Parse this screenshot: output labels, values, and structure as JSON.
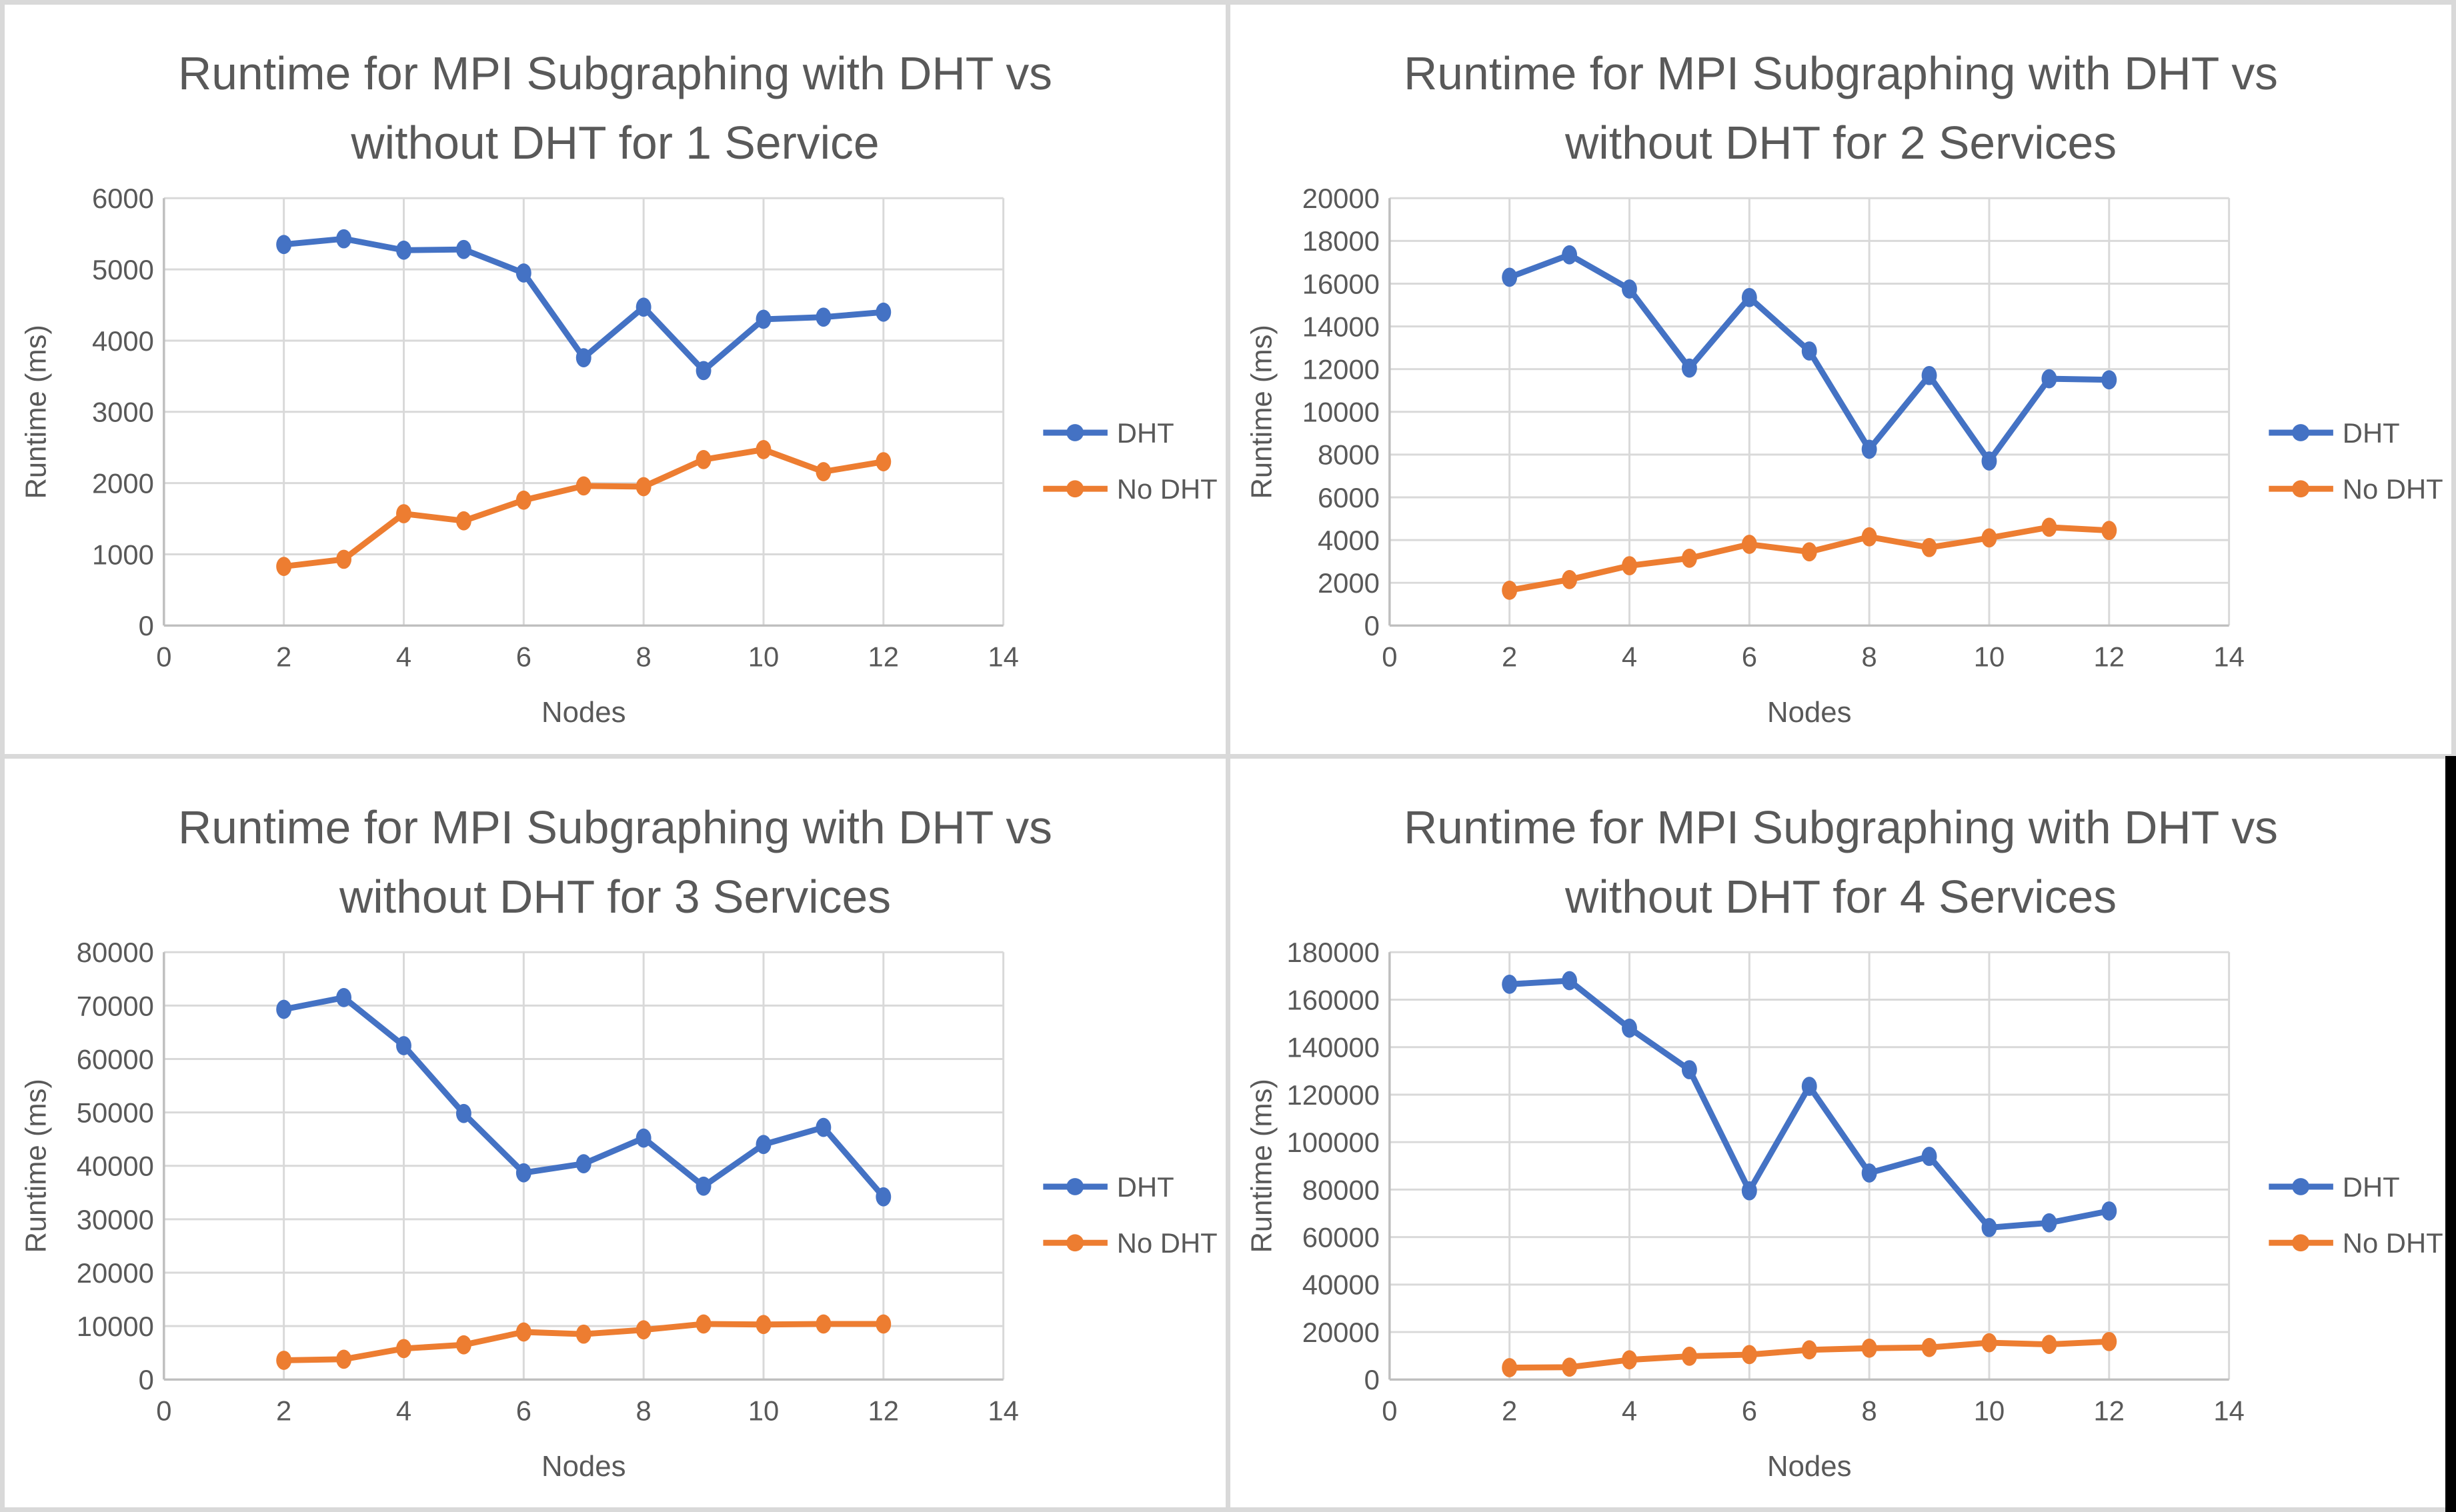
{
  "page": {
    "background": "#ffffff",
    "divider_color": "#d9d9d9",
    "window_edge_color": "#000000"
  },
  "colors": {
    "dht": "#4472C4",
    "no_dht": "#ED7D31",
    "title_text": "#595959",
    "axis_text": "#595959",
    "gridline": "#D9D9D9",
    "axis_line": "#BFBFBF"
  },
  "legend": {
    "position": "right",
    "items": [
      {
        "label": "DHT",
        "color": "#4472C4"
      },
      {
        "label": "No DHT",
        "color": "#ED7D31"
      }
    ]
  },
  "chart_data": [
    {
      "type": "line",
      "title_line1": "Runtime for MPI Subgraphing with DHT vs",
      "title_line2": "without DHT for 1 Service",
      "xlabel": "Nodes",
      "ylabel": "Runtime (ms)",
      "xlim": [
        0,
        14
      ],
      "xticks": [
        0,
        2,
        4,
        6,
        8,
        10,
        12,
        14
      ],
      "ylim": [
        0,
        6000
      ],
      "yticks": [
        0,
        1000,
        2000,
        3000,
        4000,
        5000,
        6000
      ],
      "grid": true,
      "x": [
        2,
        3,
        4,
        5,
        6,
        7,
        8,
        9,
        10,
        11,
        12
      ],
      "series": [
        {
          "name": "DHT",
          "color": "#4472C4",
          "values": [
            5350,
            5430,
            5270,
            5280,
            4950,
            3760,
            4470,
            3580,
            4300,
            4330,
            4400
          ]
        },
        {
          "name": "No DHT",
          "color": "#ED7D31",
          "values": [
            830,
            930,
            1570,
            1470,
            1760,
            1960,
            1950,
            2330,
            2470,
            2160,
            2300
          ]
        }
      ]
    },
    {
      "type": "line",
      "title_line1": "Runtime for MPI Subgraphing with DHT vs",
      "title_line2": "without DHT for 2 Services",
      "xlabel": "Nodes",
      "ylabel": "Runtime (ms)",
      "xlim": [
        0,
        14
      ],
      "xticks": [
        0,
        2,
        4,
        6,
        8,
        10,
        12,
        14
      ],
      "ylim": [
        0,
        20000
      ],
      "yticks": [
        0,
        2000,
        4000,
        6000,
        8000,
        10000,
        12000,
        14000,
        16000,
        18000,
        20000
      ],
      "grid": true,
      "x": [
        2,
        3,
        4,
        5,
        6,
        7,
        8,
        9,
        10,
        11,
        12
      ],
      "series": [
        {
          "name": "DHT",
          "color": "#4472C4",
          "values": [
            16300,
            17350,
            15750,
            12050,
            15350,
            12850,
            8250,
            11700,
            7700,
            11550,
            11500
          ]
        },
        {
          "name": "No DHT",
          "color": "#ED7D31",
          "values": [
            1650,
            2150,
            2800,
            3150,
            3800,
            3450,
            4150,
            3650,
            4100,
            4600,
            4450
          ]
        }
      ]
    },
    {
      "type": "line",
      "title_line1": "Runtime for MPI Subgraphing with DHT vs",
      "title_line2": "without DHT for 3 Services",
      "xlabel": "Nodes",
      "ylabel": "Runtime (ms)",
      "xlim": [
        0,
        14
      ],
      "xticks": [
        0,
        2,
        4,
        6,
        8,
        10,
        12,
        14
      ],
      "ylim": [
        0,
        80000
      ],
      "yticks": [
        0,
        10000,
        20000,
        30000,
        40000,
        50000,
        60000,
        70000,
        80000
      ],
      "grid": true,
      "x": [
        2,
        3,
        4,
        5,
        6,
        7,
        8,
        9,
        10,
        11,
        12
      ],
      "series": [
        {
          "name": "DHT",
          "color": "#4472C4",
          "values": [
            69300,
            71500,
            62500,
            49800,
            38700,
            40400,
            45200,
            36200,
            44000,
            47200,
            34200
          ]
        },
        {
          "name": "No DHT",
          "color": "#ED7D31",
          "values": [
            3600,
            3800,
            5800,
            6500,
            8900,
            8500,
            9300,
            10400,
            10300,
            10400,
            10400
          ]
        }
      ]
    },
    {
      "type": "line",
      "title_line1": "Runtime for MPI Subgraphing with DHT vs",
      "title_line2": "without DHT for 4 Services",
      "xlabel": "Nodes",
      "ylabel": "Runtime (ms)",
      "xlim": [
        0,
        14
      ],
      "xticks": [
        0,
        2,
        4,
        6,
        8,
        10,
        12,
        14
      ],
      "ylim": [
        0,
        180000
      ],
      "yticks": [
        0,
        20000,
        40000,
        60000,
        80000,
        100000,
        120000,
        140000,
        160000,
        180000
      ],
      "grid": true,
      "x": [
        2,
        3,
        4,
        5,
        6,
        7,
        8,
        9,
        10,
        11,
        12
      ],
      "series": [
        {
          "name": "DHT",
          "color": "#4472C4",
          "values": [
            166500,
            168000,
            148000,
            130500,
            79500,
            123500,
            87000,
            94000,
            64000,
            66000,
            71000
          ]
        },
        {
          "name": "No DHT",
          "color": "#ED7D31",
          "values": [
            5000,
            5200,
            8300,
            9800,
            10500,
            12500,
            13200,
            13500,
            15500,
            14800,
            16000
          ]
        }
      ]
    }
  ]
}
